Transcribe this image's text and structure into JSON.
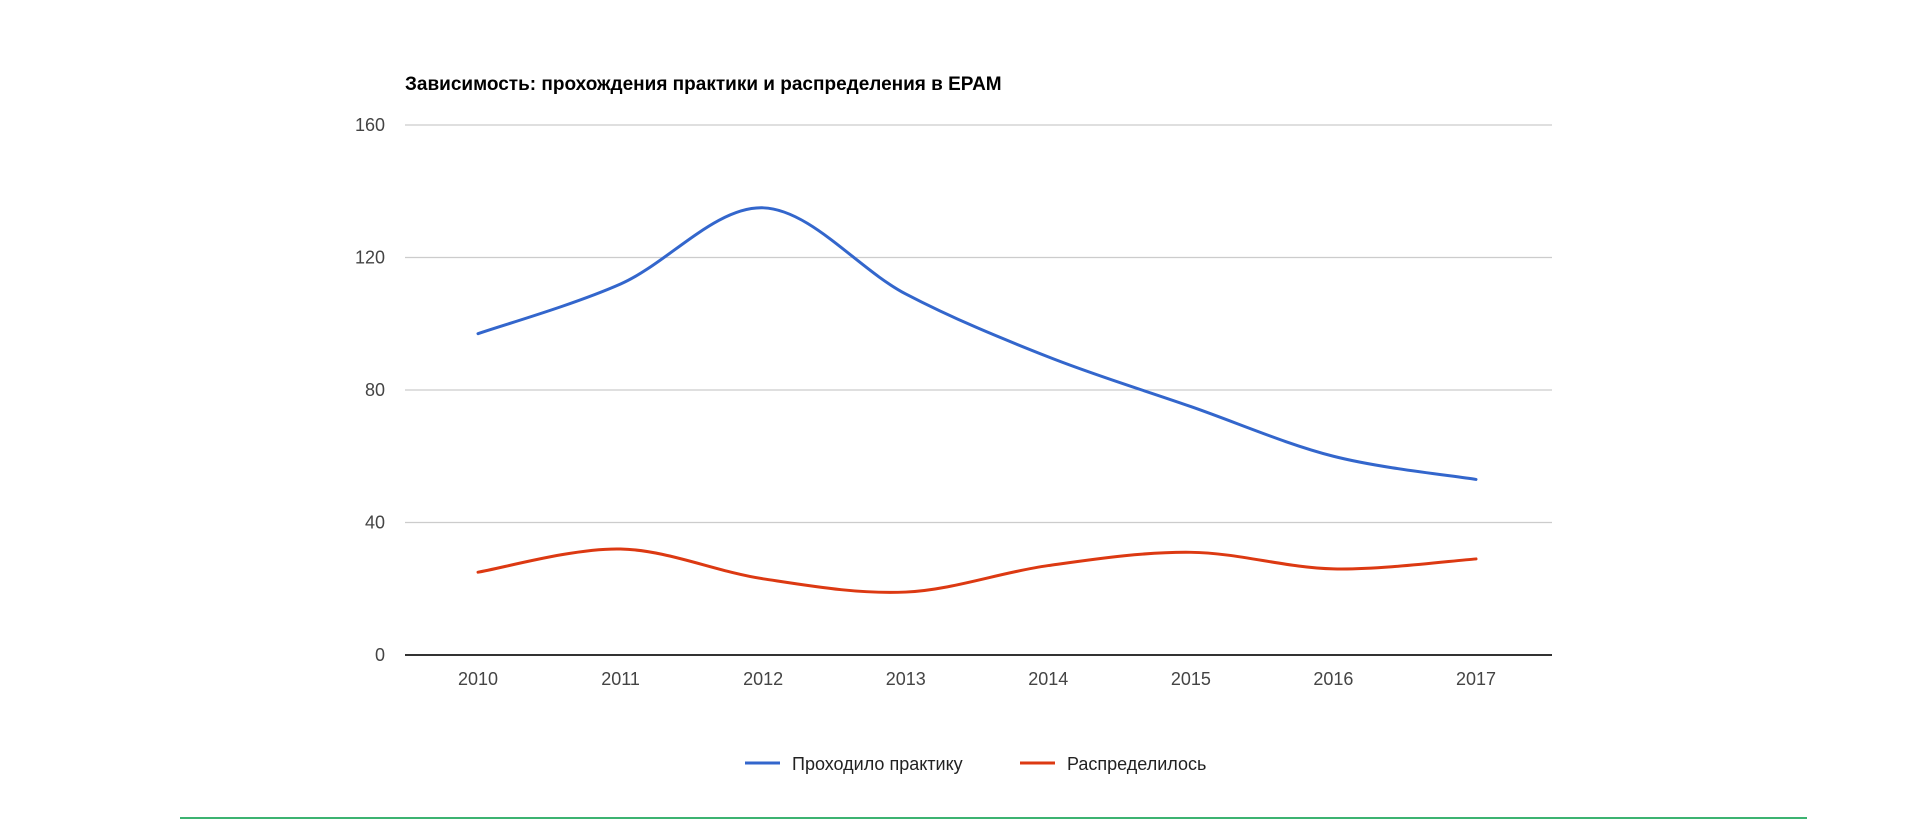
{
  "chart_data": {
    "type": "line",
    "title": "Зависимость: прохождения практики и распределения в EPAM",
    "xlabel": "",
    "ylabel": "",
    "x": [
      "2010",
      "2011",
      "2012",
      "2013",
      "2014",
      "2015",
      "2016",
      "2017"
    ],
    "ylim": [
      0,
      160
    ],
    "yticks": [
      "0",
      "40",
      "80",
      "120",
      "160"
    ],
    "grid": true,
    "legend_position": "bottom",
    "series": [
      {
        "name": "Проходило практику",
        "color": "#3366cc",
        "values": [
          97,
          112,
          135,
          109,
          90,
          75,
          60,
          53
        ]
      },
      {
        "name": "Распределилось",
        "color": "#dc3912",
        "values": [
          25,
          32,
          23,
          19,
          27,
          31,
          26,
          29
        ]
      }
    ]
  },
  "page": {
    "divider_color": "#3cb371"
  }
}
